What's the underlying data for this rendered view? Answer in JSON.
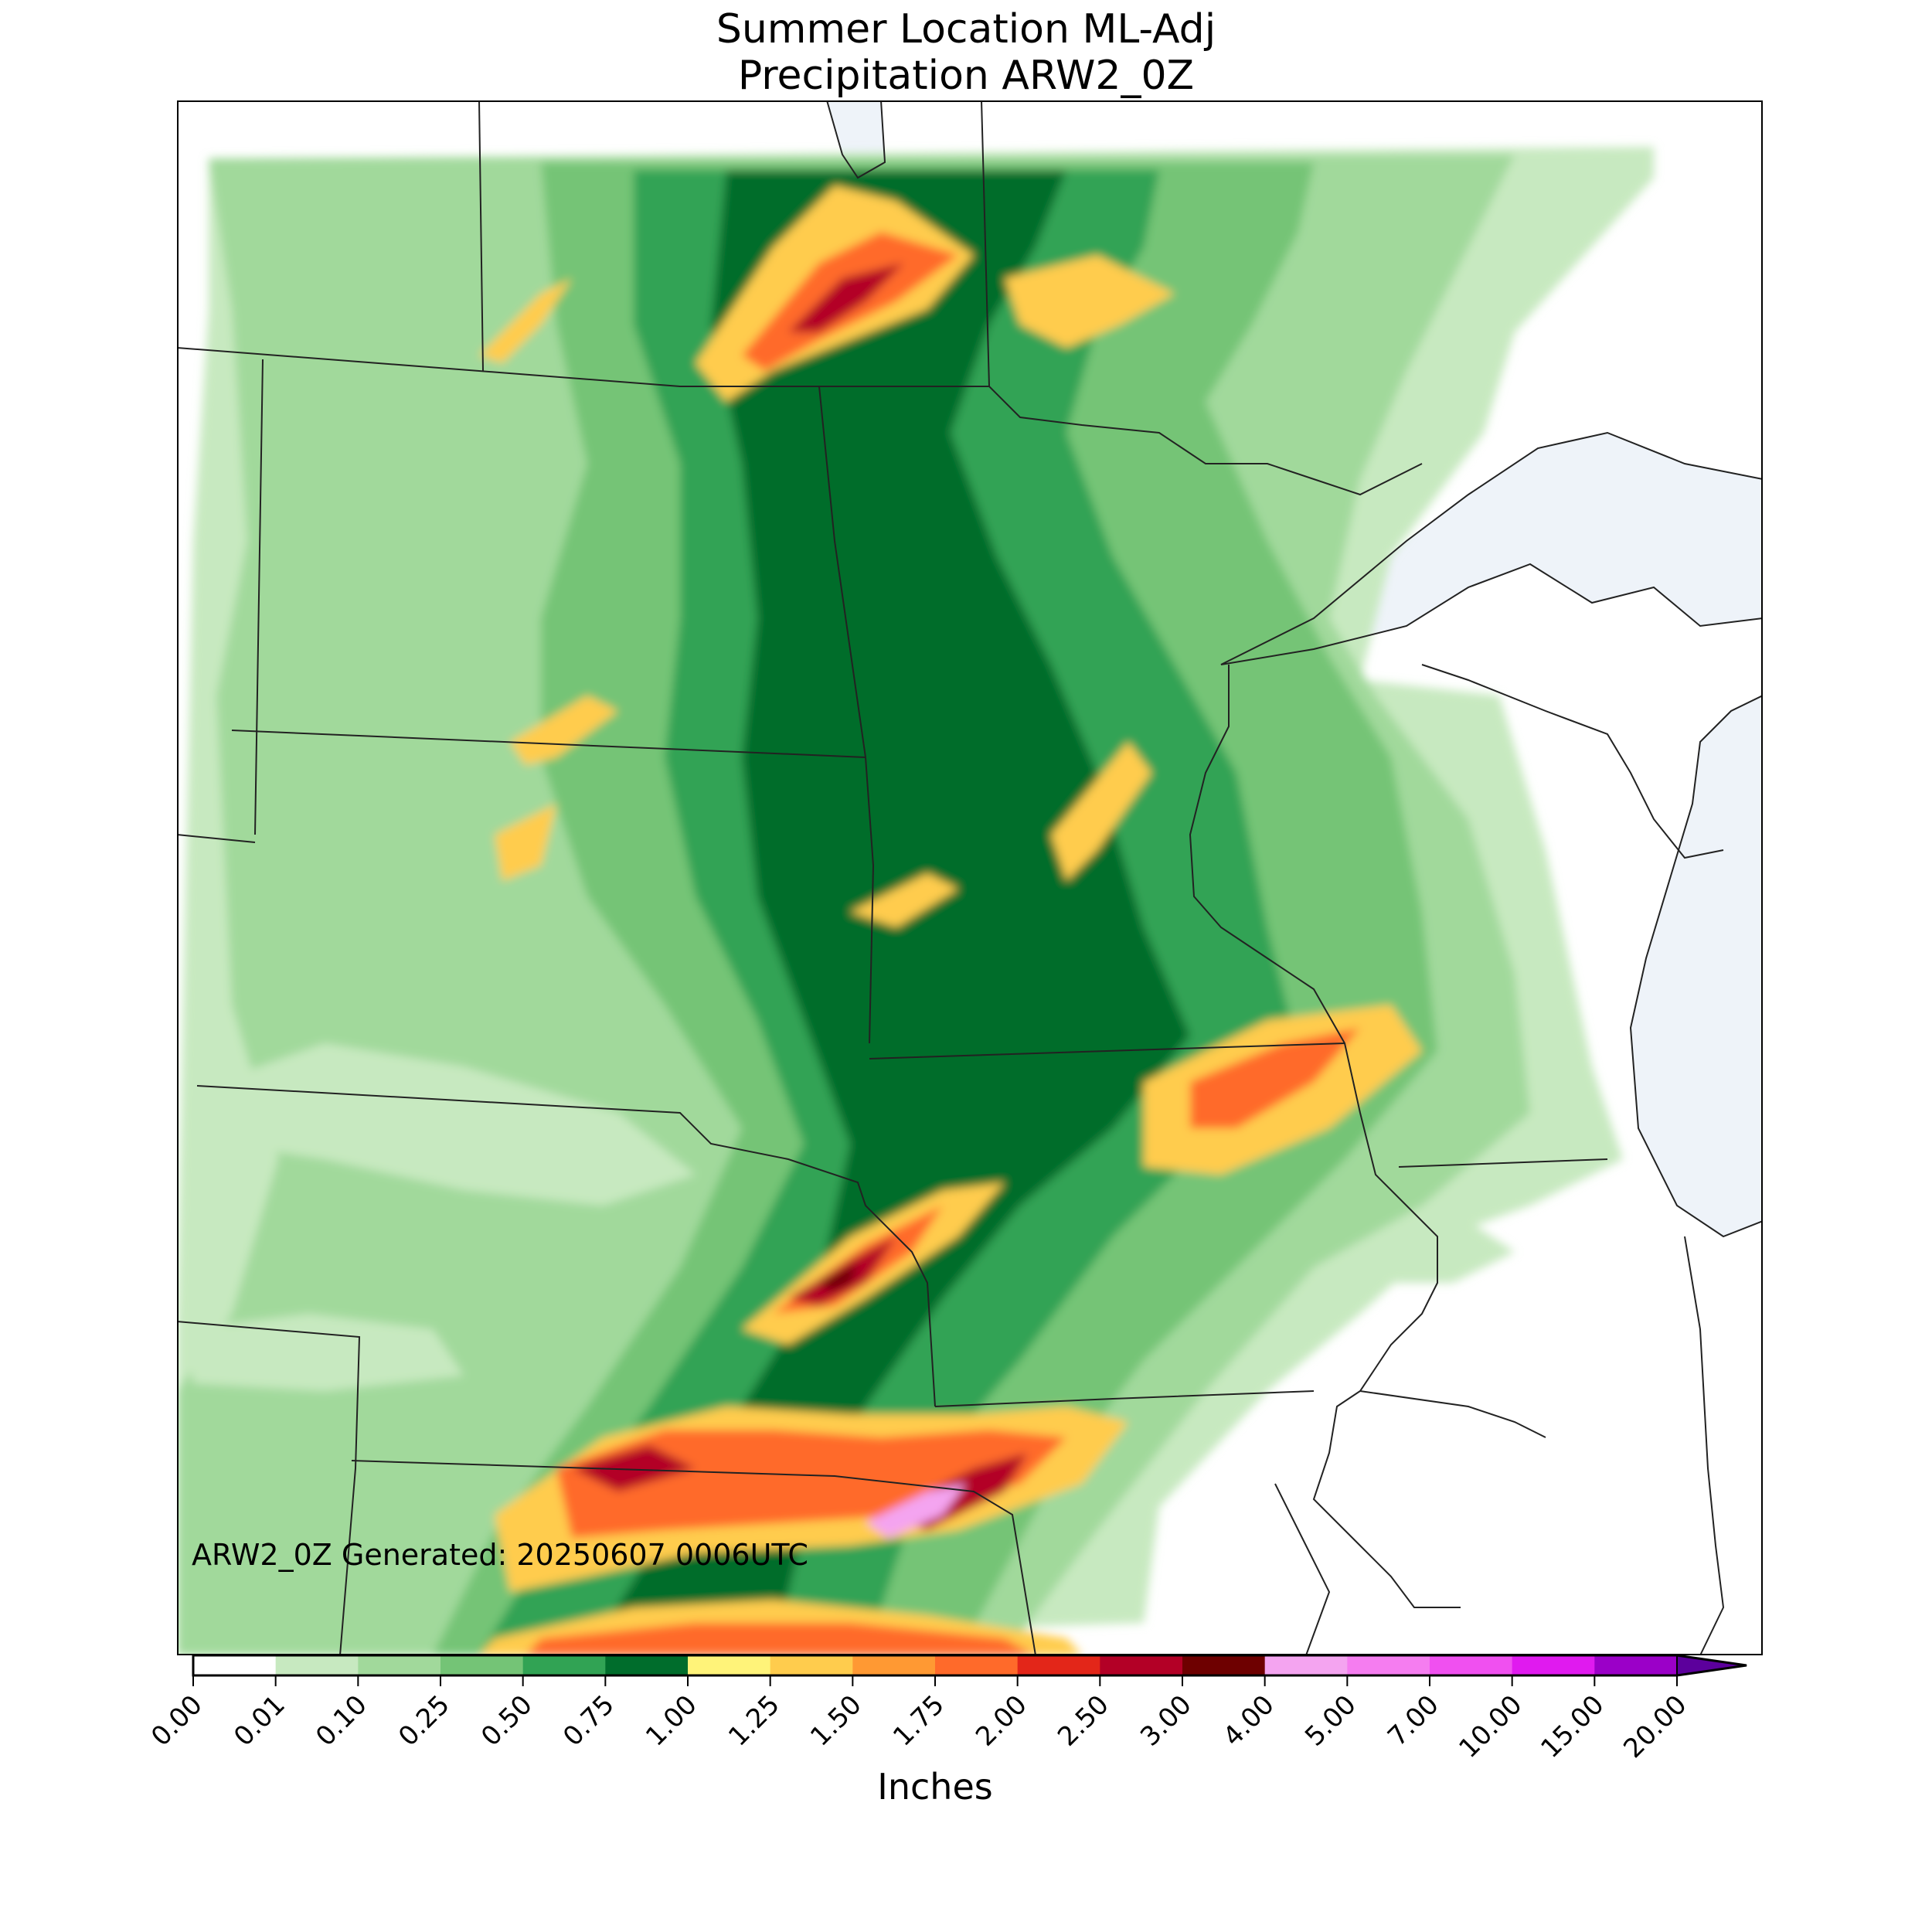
{
  "header": {
    "title_line1": "Summer Location ML-Adj",
    "title_line2": "Precipitation ARW2_0Z"
  },
  "map": {
    "stamp_text": "ARW2_0Z Generated: 20250607 0006UTC",
    "colors": {
      "water": "#eef3f9",
      "border": "#222222",
      "background": "#ffffff"
    }
  },
  "colorbar": {
    "label": "Inches",
    "tick_labels": [
      "0.00",
      "0.01",
      "0.10",
      "0.25",
      "0.50",
      "0.75",
      "1.00",
      "1.25",
      "1.50",
      "1.75",
      "2.00",
      "2.50",
      "3.00",
      "4.00",
      "5.00",
      "7.00",
      "10.00",
      "15.00",
      "20.00"
    ],
    "colors": [
      "#ffffff",
      "#c7e9c0",
      "#a1d99b",
      "#74c476",
      "#31a354",
      "#006d2c",
      "#fff379",
      "#ffcc4d",
      "#ff9933",
      "#ff6a2a",
      "#e32619",
      "#b30026",
      "#6e0000",
      "#f4a4f0",
      "#f57df0",
      "#f050f0",
      "#e01aef",
      "#9b00c8"
    ],
    "extend_color": "#5c009c"
  }
}
